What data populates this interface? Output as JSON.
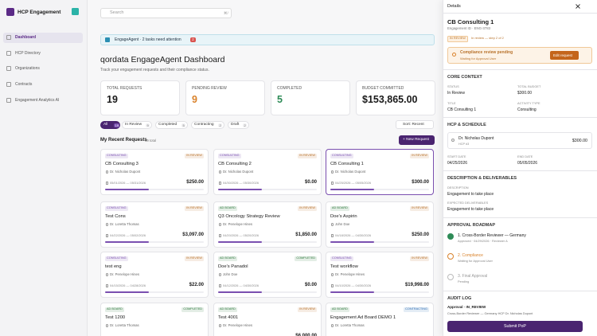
{
  "sidebar": {
    "brand": "HCP Engagement",
    "nav": [
      "Dashboard",
      "HCP Directory",
      "Organizations",
      "Contracts",
      "Engagement Analytics AI"
    ]
  },
  "topbar": {
    "search": "Search",
    "shortcut": "⌘/"
  },
  "banner": {
    "text": "EngageAgent · 2 tasks need attention",
    "count": 2
  },
  "header": {
    "title": "qordata EngageAgent Dashboard",
    "subtitle": "Track your engagement requests and their compliance status."
  },
  "stats": [
    {
      "label": "TOTAL REQUESTS",
      "value": 19,
      "color": "#1a1a1a"
    },
    {
      "label": "PENDING REVIEW",
      "value": 9,
      "color": "#d9822b"
    },
    {
      "label": "COMPLETED",
      "value": 5,
      "color": "#2e8b57"
    },
    {
      "label": "BUDGET COMMITTED",
      "value": "$153,865.00",
      "color": "#1a1a1a"
    }
  ],
  "filters": [
    {
      "label": "All",
      "count": 19
    },
    {
      "label": "In Review",
      "count": 9
    },
    {
      "label": "Completed",
      "count": 5
    },
    {
      "label": "Contracting",
      "count": 2
    },
    {
      "label": "Draft",
      "count": 2
    }
  ],
  "sort": "Sort: Recent",
  "list": {
    "title": "My Recent Requests",
    "total": "19 total",
    "new_button": "+ New Request"
  },
  "cards": [
    {
      "type": "CONSULTING",
      "type_color": "#7a4fb0",
      "status": "IN REVIEW",
      "status_color": "#b8722b",
      "title": "CB Consulting 3",
      "hcp": "Dr. Nicholas Dupont",
      "dates": "05/01/2026 — 05/31/2026",
      "amount": "$250.00"
    },
    {
      "type": "CONSULTING",
      "type_color": "#7a4fb0",
      "status": "IN REVIEW",
      "status_color": "#b8722b",
      "title": "CB Consulting 2",
      "hcp": "Dr. Nicholas Dupont",
      "dates": "04/30/2026 — 05/30/2026",
      "amount": "$0.00"
    },
    {
      "type": "CONSULTING",
      "type_color": "#7a4fb0",
      "status": "IN REVIEW",
      "status_color": "#b8722b",
      "title": "CB Consulting 1",
      "hcp": "Dr. Nicholas Dupont",
      "dates": "04/25/2026 — 05/05/2026",
      "amount": "$300.00"
    },
    {
      "type": "CONSULTING",
      "type_color": "#7a4fb0",
      "status": "IN REVIEW",
      "status_color": "#b8722b",
      "title": "Test Cons",
      "hcp": "Dr. Loretta Thomas",
      "dates": "04/22/2026 — 05/02/2026",
      "amount": "$3,097.00"
    },
    {
      "type": "AD BOARD",
      "type_color": "#2f7a3e",
      "status": "IN REVIEW",
      "status_color": "#b8722b",
      "title": "Q3 Oncology Strategy Review",
      "hcp": "Dr. Penelope Hines",
      "dates": "04/20/2026 — 05/20/2026",
      "amount": "$1,850.00"
    },
    {
      "type": "AD BOARD",
      "type_color": "#2f7a3e",
      "status": "IN REVIEW",
      "status_color": "#b8722b",
      "title": "Doe's Aspirin",
      "hcp": "John Doe",
      "dates": "04/18/2026 — 04/30/2026",
      "amount": "$250.00"
    },
    {
      "type": "CONSULTING",
      "type_color": "#7a4fb0",
      "status": "IN REVIEW",
      "status_color": "#b8722b",
      "title": "test eng",
      "hcp": "Dr. Penelope Hines",
      "dates": "04/15/2026 — 04/28/2026",
      "amount": "$22.00"
    },
    {
      "type": "AD BOARD",
      "type_color": "#2f7a3e",
      "status": "COMPLETED",
      "status_color": "#2f7a3e",
      "title": "Doe's Panadol",
      "hcp": "John Doe",
      "dates": "04/12/2026 — 04/30/2026",
      "amount": "$0.00"
    },
    {
      "type": "CONSULTING",
      "type_color": "#7a4fb0",
      "status": "IN REVIEW",
      "status_color": "#b8722b",
      "title": "Test workflow",
      "hcp": "Dr. Penelope Hines",
      "dates": "04/10/2026 — 04/30/2026",
      "amount": "$19,998.00"
    },
    {
      "type": "AD BOARD",
      "type_color": "#2f7a3e",
      "status": "COMPLETED",
      "status_color": "#2f7a3e",
      "title": "Test 1200",
      "hcp": "Dr. Loretta Thomas"
    },
    {
      "type": "AD BOARD",
      "type_color": "#2f7a3e",
      "status": "IN REVIEW",
      "status_color": "#b8722b",
      "title": "Test 4001",
      "hcp": "Dr. Penelope Hines",
      "amount": "$6,000.00"
    },
    {
      "type": "AD BOARD",
      "type_color": "#2f7a3e",
      "status": "CONTRACTING",
      "status_color": "#2d6db5",
      "title": "Engagement Ad Board DEMO 1",
      "hcp": "Dr. Loretta Thomas"
    }
  ],
  "details": {
    "heading": "Details",
    "title": "CB Consulting 1",
    "id": "Engagement ID · ENG-3783",
    "status_badge": "IN REVIEW",
    "step": "In review — step 2 of 2",
    "alert": {
      "title": "Compliance review pending",
      "text": "Waiting for Approval User",
      "button": "Edit request"
    },
    "core": {
      "heading": "CORE CONTEXT",
      "fields": [
        {
          "label": "STATUS",
          "value": "In Review"
        },
        {
          "label": "TOTAL BUDGET",
          "value": "$300.00"
        },
        {
          "label": "TITLE",
          "value": "CB Consulting 1"
        },
        {
          "label": "ACTIVITY TYPE",
          "value": "Consulting"
        }
      ]
    },
    "hcp": {
      "heading": "HCP & SCHEDULE",
      "name": "Dr. Nicholas Dupont",
      "sub": "HCP #3",
      "amount": "$300.00",
      "fields": [
        {
          "label": "START DATE",
          "value": "04/25/2026"
        },
        {
          "label": "END DATE",
          "value": "05/05/2026"
        }
      ]
    },
    "description": {
      "heading": "DESCRIPTION & DELIVERABLES",
      "fields": [
        {
          "label": "DESCRIPTION",
          "value": "Engagement to take place"
        },
        {
          "label": "EXPECTED DELIVERABLES",
          "value": "Engagement to take place"
        }
      ]
    },
    "roadmap": {
      "heading": "APPROVAL ROADMAP",
      "steps": [
        {
          "title": "1. Cross-Border Reviewer — Germany",
          "sub": "Approved · 04/29/2026 · Reviewer A",
          "color": "#2e8b57"
        },
        {
          "title": "2. Compliance",
          "sub": "Waiting for Approval User",
          "color": "#d9822b"
        },
        {
          "title": "3. Final Approval",
          "sub": "Pending",
          "color": "#bbbbbb"
        }
      ]
    },
    "audit": {
      "heading": "AUDIT LOG",
      "title": "Approval · IN_REVIEW",
      "text": "Cross-Border Reviewer — Germany HCP Dr. Nicholas Dupont"
    },
    "submit": "Submit PoP"
  }
}
